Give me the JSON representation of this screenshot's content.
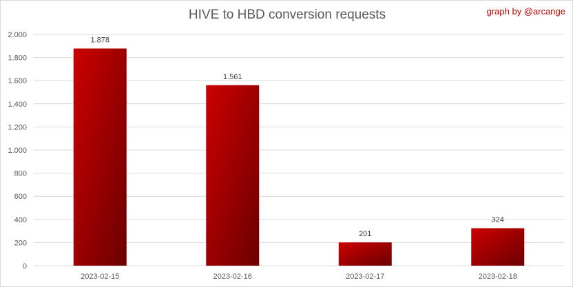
{
  "credit": "graph by @arcange",
  "colors": {
    "bar_light": "#cc0000",
    "bar_dark": "#6b0000",
    "grid": "#d9d9d9",
    "text": "#595959"
  },
  "chart_data": {
    "type": "bar",
    "title": "HIVE to HBD conversion requests",
    "xlabel": "",
    "ylabel": "",
    "categories": [
      "2023-02-15",
      "2023-02-16",
      "2023-02-17",
      "2023-02-18"
    ],
    "values": [
      1878,
      1561,
      201,
      324
    ],
    "value_labels": [
      "1.878",
      "1.561",
      "201",
      "324"
    ],
    "ylim": [
      0,
      2000
    ],
    "yticks": [
      0,
      200,
      400,
      600,
      800,
      1000,
      1200,
      1400,
      1600,
      1800,
      2000
    ],
    "ytick_labels": [
      "0",
      "200",
      "400",
      "600",
      "800",
      "1.000",
      "1.200",
      "1.400",
      "1.600",
      "1.800",
      "2.000"
    ],
    "grid": true,
    "legend": "none"
  }
}
